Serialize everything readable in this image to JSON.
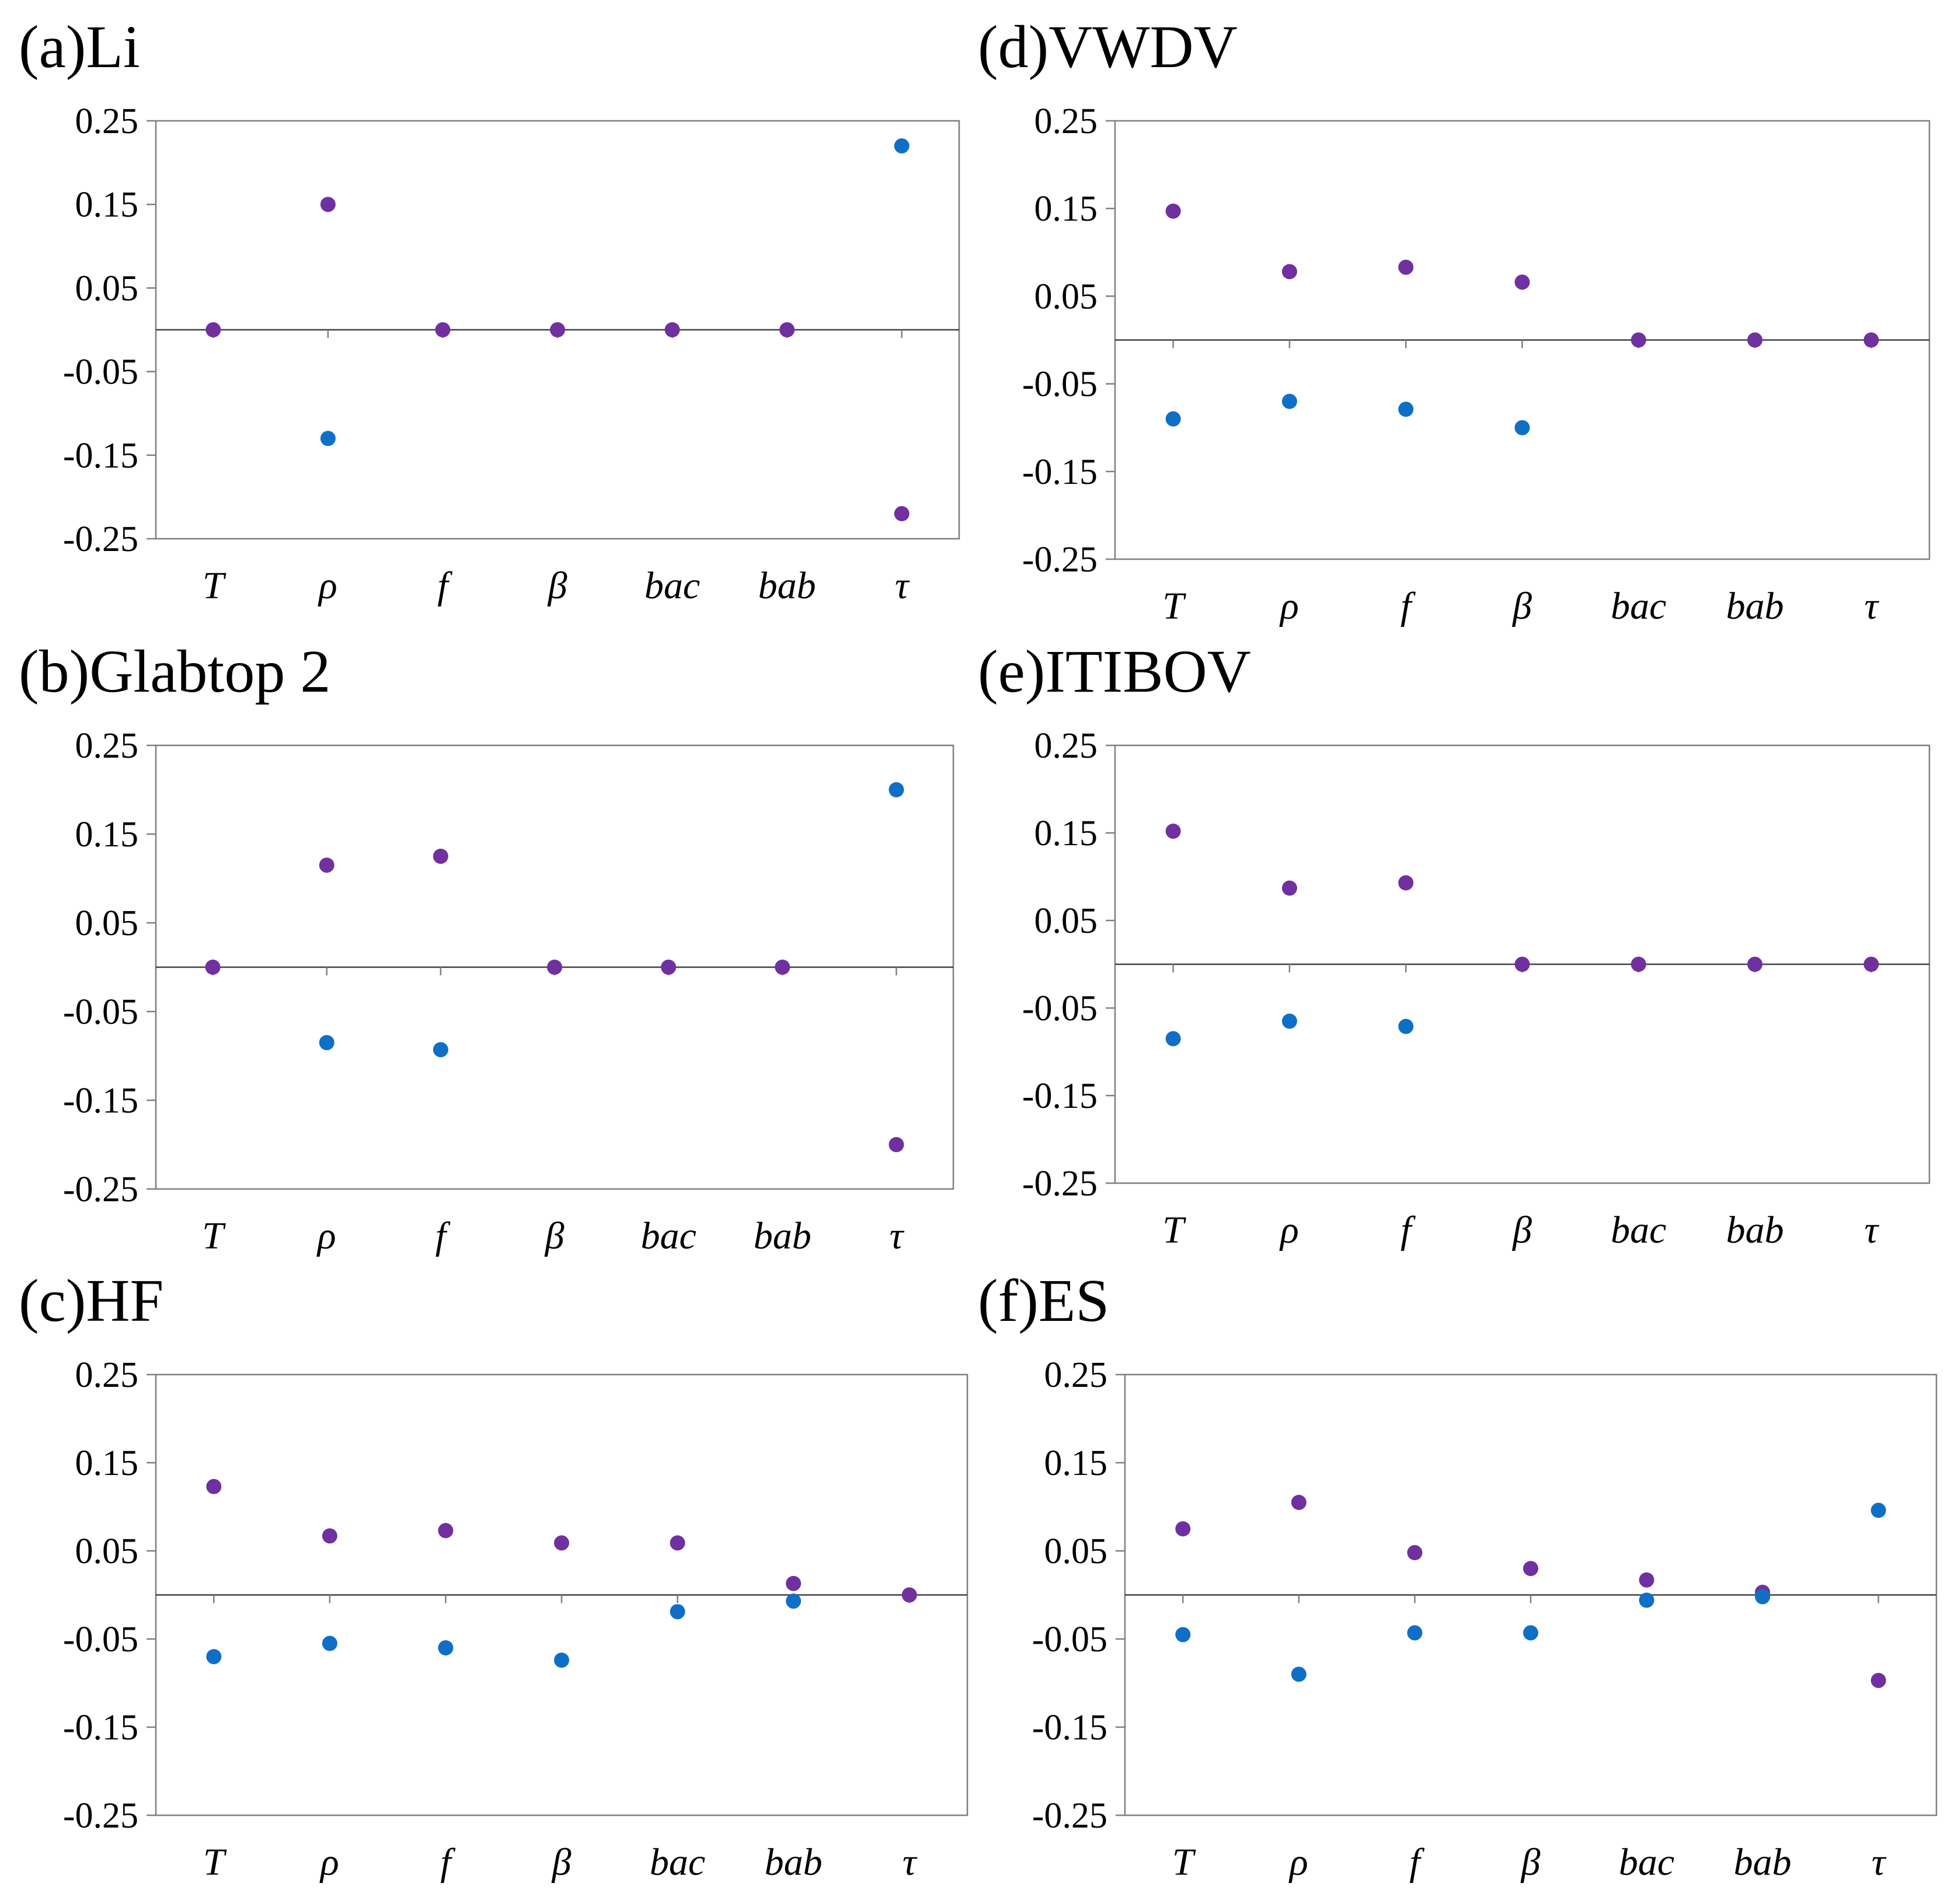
{
  "colors": {
    "series_a": "#7030A0",
    "series_b": "#0F6FC6",
    "axis": "#7f7f7f"
  },
  "chart_data": [
    {
      "type": "scatter",
      "title": "(a)Li",
      "categories": [
        "T",
        "ρ",
        "f",
        "β",
        "bac",
        "bab",
        "τ"
      ],
      "yticks": [
        "0.25",
        "0.15",
        "0.05",
        "-0.05",
        "-0.15",
        "-0.25"
      ],
      "ylim": [
        -0.25,
        0.25
      ],
      "series": [
        {
          "name": "purple",
          "color": "#7030A0",
          "values": [
            0,
            0.15,
            0,
            0,
            0,
            0,
            -0.22
          ]
        },
        {
          "name": "blue",
          "color": "#0F6FC6",
          "values": [
            null,
            -0.13,
            null,
            null,
            null,
            null,
            0.22
          ]
        }
      ]
    },
    {
      "type": "scatter",
      "title": "(b)Glabtop 2",
      "categories": [
        "T",
        "ρ",
        "f",
        "β",
        "bac",
        "bab",
        "τ"
      ],
      "yticks": [
        "0.25",
        "0.15",
        "0.05",
        "-0.05",
        "-0.15",
        "-0.25"
      ],
      "ylim": [
        -0.25,
        0.25
      ],
      "series": [
        {
          "name": "purple",
          "color": "#7030A0",
          "values": [
            0,
            0.115,
            0.125,
            0,
            0,
            0,
            -0.2
          ]
        },
        {
          "name": "blue",
          "color": "#0F6FC6",
          "values": [
            null,
            -0.085,
            -0.093,
            null,
            null,
            null,
            0.2
          ]
        }
      ]
    },
    {
      "type": "scatter",
      "title": "(c)HF",
      "categories": [
        "T",
        "ρ",
        "f",
        "β",
        "bac",
        "bab",
        "τ"
      ],
      "yticks": [
        "0.25",
        "0.15",
        "0.05",
        "-0.05",
        "-0.15",
        "-0.25"
      ],
      "ylim": [
        -0.25,
        0.25
      ],
      "series": [
        {
          "name": "purple",
          "color": "#7030A0",
          "values": [
            0.123,
            0.067,
            0.073,
            0.059,
            0.059,
            0.013,
            0
          ]
        },
        {
          "name": "blue",
          "color": "#0F6FC6",
          "values": [
            -0.07,
            -0.055,
            -0.06,
            -0.074,
            -0.019,
            -0.007,
            null
          ]
        }
      ]
    },
    {
      "type": "scatter",
      "title": "(d)VWDV",
      "categories": [
        "T",
        "ρ",
        "f",
        "β",
        "bac",
        "bab",
        "τ"
      ],
      "yticks": [
        "0.25",
        "0.15",
        "0.05",
        "-0.05",
        "-0.15",
        "-0.25"
      ],
      "ylim": [
        -0.25,
        0.25
      ],
      "series": [
        {
          "name": "purple",
          "color": "#7030A0",
          "values": [
            0.147,
            0.078,
            0.083,
            0.066,
            0,
            0,
            0
          ]
        },
        {
          "name": "blue",
          "color": "#0F6FC6",
          "values": [
            -0.09,
            -0.07,
            -0.079,
            -0.1,
            null,
            null,
            null
          ]
        }
      ]
    },
    {
      "type": "scatter",
      "title": "(e)ITIBOV",
      "categories": [
        "T",
        "ρ",
        "f",
        "β",
        "bac",
        "bab",
        "τ"
      ],
      "yticks": [
        "0.25",
        "0.15",
        "0.05",
        "-0.05",
        "-0.15",
        "-0.25"
      ],
      "ylim": [
        -0.25,
        0.25
      ],
      "series": [
        {
          "name": "purple",
          "color": "#7030A0",
          "values": [
            0.152,
            0.087,
            0.093,
            0,
            0,
            0,
            0
          ]
        },
        {
          "name": "blue",
          "color": "#0F6FC6",
          "values": [
            -0.085,
            -0.065,
            -0.071,
            null,
            null,
            null,
            null
          ]
        }
      ]
    },
    {
      "type": "scatter",
      "title": "(f)ES",
      "categories": [
        "T",
        "ρ",
        "f",
        "β",
        "bac",
        "bab",
        "τ"
      ],
      "yticks": [
        "0.25",
        "0.15",
        "0.05",
        "-0.05",
        "-0.15",
        "-0.25"
      ],
      "ylim": [
        -0.25,
        0.25
      ],
      "series": [
        {
          "name": "purple",
          "color": "#7030A0",
          "values": [
            0.075,
            0.105,
            0.048,
            0.03,
            0.017,
            0.003,
            -0.097
          ]
        },
        {
          "name": "blue",
          "color": "#0F6FC6",
          "values": [
            -0.045,
            -0.09,
            -0.043,
            -0.043,
            -0.006,
            -0.002,
            0.096
          ]
        }
      ]
    }
  ]
}
